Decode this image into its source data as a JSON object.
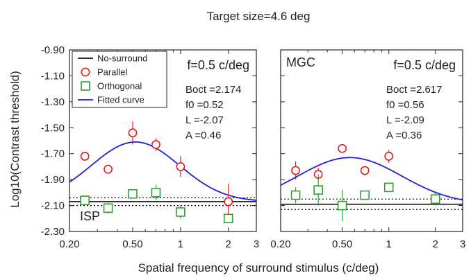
{
  "figure": {
    "title": "Target size=4.6 deg",
    "ylabel": "Log10(Contrast threshold)",
    "xlabel": "Spatial frequency of surround stimulus (c/deg)",
    "legend": [
      {
        "label": "No-surround",
        "marker": "line",
        "color": "#111111"
      },
      {
        "label": "Parallel",
        "marker": "circle",
        "color": "#e41a1c"
      },
      {
        "label": "Orthogonal",
        "marker": "square",
        "color": "#2ca02c"
      },
      {
        "label": "Fitted curve",
        "marker": "line",
        "color": "#1f1fd6"
      }
    ]
  },
  "chart_data": [
    {
      "type": "scatter",
      "panel_label": "ISP",
      "x_scale": "log",
      "xlim": [
        0.2,
        3
      ],
      "ylim": [
        -2.3,
        -0.9
      ],
      "x_ticks": [
        0.2,
        0.5,
        1,
        2,
        3
      ],
      "x_tick_labels": [
        "0.20",
        "0.50",
        "1",
        "2",
        "3"
      ],
      "y_ticks": [
        -0.9,
        -1.1,
        -1.3,
        -1.5,
        -1.7,
        -1.9,
        -2.1,
        -2.3
      ],
      "y_tick_labels": [
        "-0.90",
        "-1.10",
        "-1.30",
        "-1.50",
        "-1.70",
        "-1.90",
        "-2.10",
        "-2.30"
      ],
      "annotation_freq": "f=0.5 c/deg",
      "params": [
        "Boct =2.174",
        "f0 =0.52",
        "L =-2.07",
        "A =0.46"
      ],
      "fit": {
        "Boct": 2.174,
        "f0": 0.52,
        "L": -2.07,
        "A": 0.46
      },
      "no_surround": {
        "y": -2.07,
        "ci_low": -2.1,
        "ci_high": -2.04
      },
      "series": [
        {
          "name": "Parallel",
          "x": [
            0.25,
            0.35,
            0.5,
            0.7,
            1.0,
            2.0
          ],
          "y": [
            -1.72,
            -1.82,
            -1.54,
            -1.63,
            -1.8,
            -2.07
          ],
          "err": [
            0.03,
            0.03,
            0.09,
            0.05,
            0.08,
            0.14
          ]
        },
        {
          "name": "Orthogonal",
          "x": [
            0.25,
            0.35,
            0.5,
            0.7,
            1.0,
            2.0
          ],
          "y": [
            -2.06,
            -2.12,
            -2.01,
            -2.0,
            -2.15,
            -2.2
          ],
          "err": [
            0.02,
            0.04,
            0.03,
            0.06,
            0.05,
            0.02
          ]
        }
      ]
    },
    {
      "type": "scatter",
      "panel_label": "MGC",
      "x_scale": "log",
      "xlim": [
        0.2,
        3
      ],
      "ylim": [
        -2.3,
        -0.9
      ],
      "x_ticks": [
        0.2,
        0.5,
        1,
        2,
        3
      ],
      "x_tick_labels": [
        "0.20",
        "0.50",
        "1",
        "2",
        "3"
      ],
      "annotation_freq": "f=0.5 c/deg",
      "params": [
        "Boct =2.617",
        "f0 =0.56",
        "L =-2.09",
        "A =0.36"
      ],
      "fit": {
        "Boct": 2.617,
        "f0": 0.56,
        "L": -2.09,
        "A": 0.36
      },
      "no_surround": {
        "y": -2.09,
        "ci_low": -2.13,
        "ci_high": -2.05
      },
      "series": [
        {
          "name": "Parallel",
          "x": [
            0.25,
            0.35,
            0.5,
            0.7,
            1.0
          ],
          "y": [
            -1.83,
            -1.86,
            -1.66,
            -1.83,
            -1.72
          ],
          "err": [
            0.07,
            0.05,
            0.0,
            0.0,
            0.05
          ]
        },
        {
          "name": "Orthogonal",
          "x": [
            0.25,
            0.35,
            0.5,
            0.7,
            1.0,
            2.0
          ],
          "y": [
            -2.02,
            -1.98,
            -2.1,
            -2.02,
            -1.96,
            -2.05
          ],
          "err": [
            0.06,
            0.12,
            0.12,
            0.0,
            0.03,
            0.05
          ]
        }
      ]
    }
  ]
}
